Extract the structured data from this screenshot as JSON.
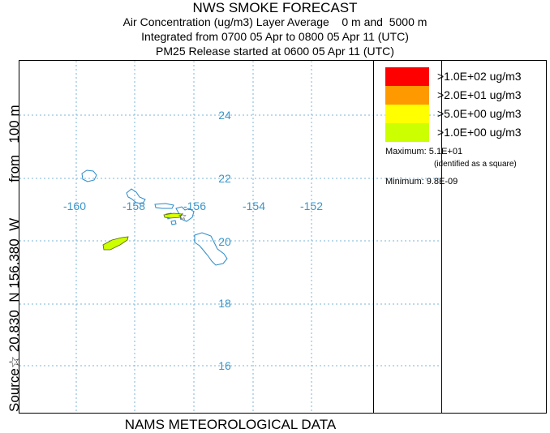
{
  "titles": {
    "main": "NWS SMOKE FORECAST",
    "line2": "Air Concentration (ug/m3) Layer Average    0 m and  5000 m",
    "line3": "Integrated from 0700 05 Apr to 0800 05 Apr 11 (UTC)",
    "line4": "PM25 Release started at 0600 05 Apr 11 (UTC)"
  },
  "side_label": {
    "source": "Source☆ 20.830  N 156.380  W",
    "height": "from   100 m"
  },
  "bottom_label": "NAMS METEOROLOGICAL DATA",
  "map": {
    "lon_labels": [
      "-160",
      "-158",
      "-156",
      "-154",
      "-152"
    ],
    "lat_labels": [
      "24",
      "22",
      "20",
      "18",
      "16"
    ],
    "grid_color": "#7ab6d9",
    "coast_color": "#2a8ac9",
    "label_color": "#3a95c8"
  },
  "legend": {
    "items": [
      {
        "label": ">1.0E+02 ug/m3",
        "color": "#ff0000"
      },
      {
        "label": ">2.0E+01 ug/m3",
        "color": "#ff9900"
      },
      {
        "label": ">5.0E+00 ug/m3",
        "color": "#ffff00"
      },
      {
        "label": ">1.0E+00 ug/m3",
        "color": "#ccff00"
      }
    ],
    "maximum_label": "Maximum:",
    "maximum_value": "5.1E+01",
    "maximum_note": "(identified as a square)",
    "minimum_label": "Minimum:",
    "minimum_value": "9.8E-09"
  }
}
